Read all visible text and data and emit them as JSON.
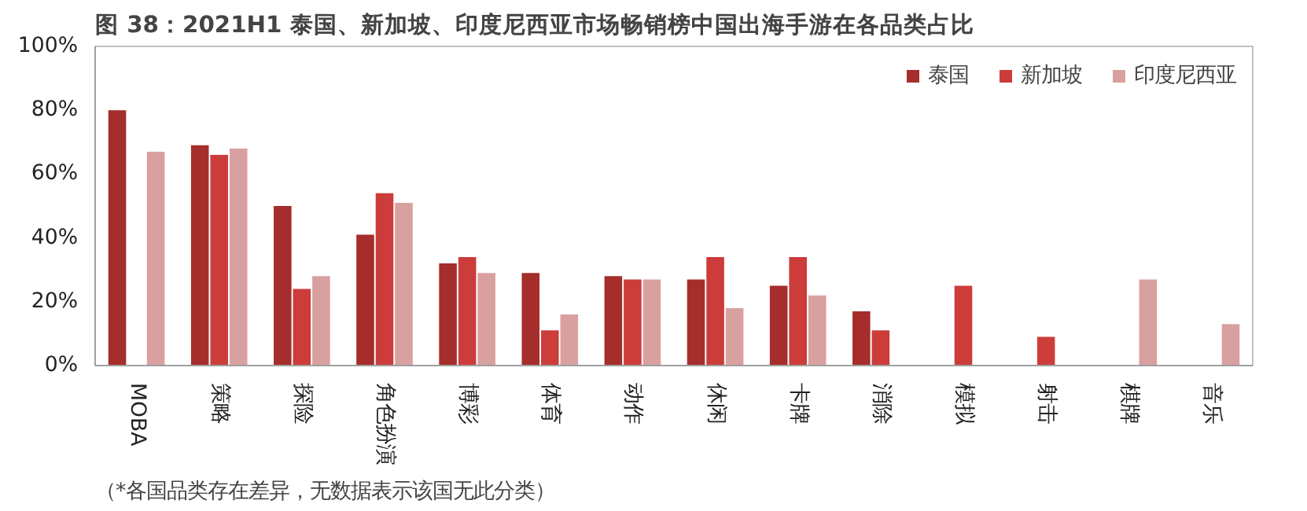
{
  "chart_data": {
    "type": "bar",
    "title": "图 38：2021H1 泰国、新加坡、印度尼西亚市场畅销榜中国出海手游在各品类占比",
    "categories": [
      "MOBA",
      "策略",
      "探险",
      "角色扮演",
      "博彩",
      "体育",
      "动作",
      "休闲",
      "卡牌",
      "消除",
      "模拟",
      "射击",
      "棋牌",
      "音乐"
    ],
    "series": [
      {
        "name": "泰国",
        "color": "#a52d2b",
        "values": [
          80,
          69,
          50,
          41,
          32,
          29,
          28,
          27,
          25,
          17,
          null,
          null,
          null,
          null
        ]
      },
      {
        "name": "新加坡",
        "color": "#cc3c3a",
        "values": [
          null,
          66,
          24,
          54,
          34,
          11,
          27,
          34,
          34,
          11,
          25,
          9,
          null,
          null
        ]
      },
      {
        "name": "印度尼西亚",
        "color": "#d9a0a0",
        "values": [
          67,
          68,
          28,
          51,
          29,
          16,
          27,
          18,
          22,
          null,
          null,
          null,
          27,
          13
        ]
      }
    ],
    "ylim": [
      0,
      100
    ],
    "yticks": [
      {
        "value": 0,
        "label": "0%"
      },
      {
        "value": 20,
        "label": "20%"
      },
      {
        "value": 40,
        "label": "40%"
      },
      {
        "value": 60,
        "label": "60%"
      },
      {
        "value": 80,
        "label": "80%"
      },
      {
        "value": 100,
        "label": "100%"
      }
    ],
    "legend": "top right",
    "grid": false,
    "annotations": [
      "（*各国品类存在差异，无数据表示该国无此分类）"
    ]
  }
}
